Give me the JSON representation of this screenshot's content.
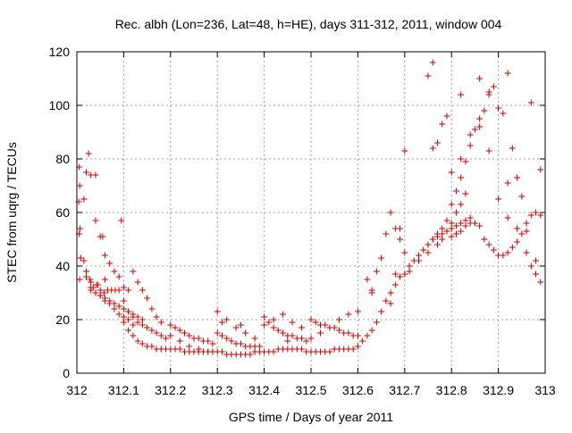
{
  "chart_data": {
    "type": "scatter",
    "title": "Rec. albh (Lon=236, Lat=48, h=HE), days 311-312, 2011, window 004",
    "xlabel": "GPS time / Days of year 2011",
    "ylabel": "STEC from uqrg / TECUs",
    "xlim": [
      312,
      313
    ],
    "ylim": [
      0,
      120
    ],
    "x_ticks": [
      "312",
      "312.1",
      "312.2",
      "312.3",
      "312.4",
      "312.5",
      "312.6",
      "312.7",
      "312.8",
      "312.9",
      "313"
    ],
    "y_ticks": [
      "0",
      "20",
      "40",
      "60",
      "80",
      "100",
      "120"
    ],
    "grid": true,
    "marker": "plus",
    "color": "#cc0000",
    "series": [
      {
        "x": [
          312.005,
          312.006,
          312.004,
          312.007,
          312.005,
          312.008,
          312.006,
          312.015,
          312.02,
          312.028,
          312.035,
          312.042,
          312.05,
          312.058,
          312.066,
          312.074,
          312.082,
          312.09,
          312.1,
          312.11,
          312.02,
          312.03,
          312.04,
          312.05,
          312.06,
          312.07,
          312.08,
          312.09,
          312.03,
          312.04,
          312.05,
          312.06,
          312.07,
          312.08,
          312.09,
          312.1,
          312.11,
          312.12,
          312.13,
          312.14,
          312.03,
          312.04,
          312.05,
          312.06,
          312.07,
          312.08,
          312.09,
          312.1,
          312.11,
          312.12,
          312.015,
          312.025,
          312.04,
          312.055,
          312.095,
          312.02,
          312.03,
          312.045,
          312.06,
          312.1,
          312.11,
          312.12,
          312.13,
          312.14,
          312.15,
          312.16,
          312.17,
          312.18,
          312.19,
          312.1,
          312.11,
          312.12,
          312.13,
          312.14,
          312.15,
          312.16,
          312.17,
          312.18,
          312.19,
          312.12,
          312.13,
          312.14,
          312.15,
          312.16,
          312.17,
          312.18,
          312.2,
          312.21,
          312.22,
          312.23,
          312.24,
          312.25,
          312.26,
          312.27,
          312.28,
          312.29,
          312.2,
          312.21,
          312.22,
          312.23,
          312.24,
          312.25,
          312.26,
          312.27,
          312.28,
          312.29,
          312.2,
          312.22,
          312.24,
          312.26,
          312.28,
          312.3,
          312.31,
          312.32,
          312.33,
          312.34,
          312.35,
          312.36,
          312.37,
          312.38,
          312.39,
          312.3,
          312.31,
          312.32,
          312.33,
          312.34,
          312.35,
          312.36,
          312.37,
          312.38,
          312.39,
          312.3,
          312.32,
          312.34,
          312.36,
          312.38,
          312.31,
          312.35,
          312.4,
          312.41,
          312.42,
          312.43,
          312.44,
          312.45,
          312.46,
          312.47,
          312.48,
          312.49,
          312.4,
          312.41,
          312.42,
          312.43,
          312.44,
          312.45,
          312.46,
          312.47,
          312.48,
          312.49,
          312.4,
          312.42,
          312.44,
          312.46,
          312.48,
          312.45,
          312.5,
          312.51,
          312.52,
          312.53,
          312.54,
          312.55,
          312.56,
          312.57,
          312.58,
          312.59,
          312.5,
          312.51,
          312.52,
          312.53,
          312.54,
          312.55,
          312.56,
          312.57,
          312.58,
          312.59,
          312.5,
          312.52,
          312.54,
          312.56,
          312.58,
          312.6,
          312.6,
          312.61,
          312.62,
          312.63,
          312.64,
          312.65,
          312.66,
          312.67,
          312.68,
          312.69,
          312.62,
          312.63,
          312.64,
          312.65,
          312.66,
          312.67,
          312.68,
          312.69,
          312.7,
          312.6,
          312.63,
          312.67,
          312.68,
          312.69,
          312.7,
          312.7,
          312.71,
          312.72,
          312.73,
          312.74,
          312.75,
          312.76,
          312.77,
          312.78,
          312.79,
          312.71,
          312.73,
          312.75,
          312.77,
          312.78,
          312.79,
          312.8,
          312.81,
          312.82,
          312.83,
          312.75,
          312.76,
          312.77,
          312.78,
          312.79,
          312.8,
          312.81,
          312.82,
          312.83,
          312.84,
          312.76,
          312.77,
          312.78,
          312.79,
          312.75,
          312.76,
          312.8,
          312.81,
          312.82,
          312.83,
          312.84,
          312.85,
          312.86,
          312.87,
          312.88,
          312.89,
          312.8,
          312.81,
          312.82,
          312.83,
          312.84,
          312.85,
          312.86,
          312.87,
          312.88,
          312.89,
          312.8,
          312.82,
          312.84,
          312.86,
          312.88,
          312.82,
          312.86,
          312.88,
          312.9,
          312.91,
          312.92,
          312.93,
          312.94,
          312.95,
          312.96,
          312.97,
          312.98,
          312.99,
          312.9,
          312.91,
          312.92,
          312.93,
          312.94,
          312.95,
          312.96,
          312.97,
          312.98,
          312.99,
          312.9,
          312.92,
          312.94,
          312.96,
          312.98,
          312.92,
          312.97,
          312.99
        ],
        "y": [
          77,
          70,
          64,
          54,
          52,
          43,
          35,
          42,
          38,
          35,
          32,
          33,
          31,
          30,
          31,
          31,
          31,
          31,
          32,
          31,
          75,
          74,
          57,
          51,
          44,
          41,
          38,
          36,
          32,
          30,
          29,
          28,
          27,
          26,
          25,
          24,
          23,
          22,
          21,
          20,
          31,
          30,
          29,
          27,
          26,
          24,
          22,
          21,
          20,
          18,
          65,
          82,
          74,
          51,
          57,
          36,
          34,
          33,
          35,
          19,
          16,
          14,
          12,
          11,
          10,
          10,
          9,
          9,
          9,
          27,
          23,
          21,
          19,
          18,
          17,
          16,
          15,
          14,
          13,
          38,
          34,
          31,
          28,
          24,
          21,
          19,
          9,
          9,
          9,
          8,
          8,
          8,
          8,
          8,
          8,
          8,
          18,
          17,
          16,
          15,
          14,
          13,
          13,
          12,
          12,
          11,
          14,
          12,
          10,
          9,
          8,
          8,
          8,
          7,
          7,
          7,
          7,
          7,
          7,
          8,
          8,
          15,
          14,
          13,
          12,
          11,
          11,
          10,
          10,
          10,
          10,
          23,
          20,
          17,
          15,
          13,
          19,
          18,
          8,
          8,
          8,
          9,
          9,
          9,
          9,
          9,
          9,
          8,
          21,
          19,
          17,
          16,
          15,
          14,
          14,
          13,
          13,
          12,
          18,
          20,
          22,
          19,
          17,
          12,
          8,
          8,
          8,
          8,
          8,
          9,
          9,
          9,
          9,
          9,
          20,
          19,
          18,
          18,
          17,
          17,
          16,
          15,
          15,
          14,
          13,
          15,
          17,
          20,
          22,
          23,
          10,
          12,
          14,
          16,
          19,
          23,
          27,
          30,
          33,
          36,
          35,
          31,
          38,
          43,
          52,
          60,
          54,
          50,
          45,
          14,
          30,
          26,
          37,
          54,
          83,
          37,
          40,
          42,
          44,
          46,
          48,
          50,
          52,
          54,
          57,
          38,
          42,
          45,
          48,
          50,
          53,
          56,
          60,
          63,
          67,
          48,
          50,
          51,
          52,
          53,
          54,
          55,
          56,
          57,
          58,
          84,
          86,
          93,
          96,
          111,
          116,
          51,
          52,
          53,
          55,
          56,
          56,
          55,
          50,
          48,
          46,
          63,
          68,
          73,
          79,
          85,
          91,
          95,
          98,
          104,
          107,
          75,
          80,
          89,
          92,
          83,
          104,
          110,
          105,
          44,
          44,
          45,
          47,
          49,
          52,
          56,
          59,
          60,
          59,
          99,
          97,
          112,
          84,
          73,
          66,
          53,
          40,
          37,
          34,
          65,
          58,
          54,
          45,
          42,
          71,
          101,
          76
        ]
      }
    ]
  }
}
